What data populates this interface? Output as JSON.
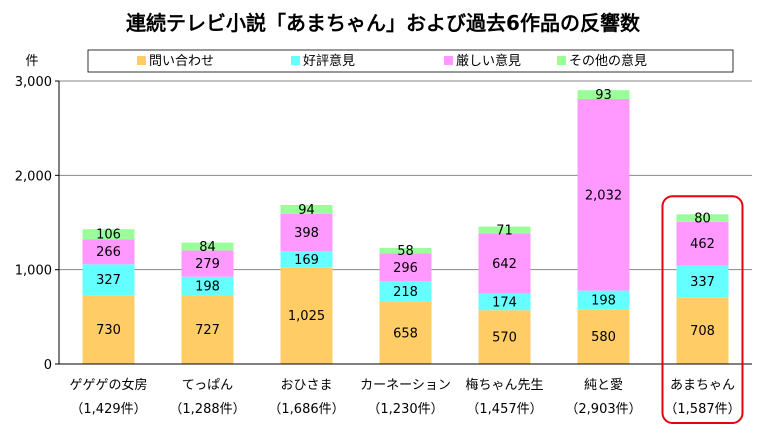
{
  "chart_data": {
    "type": "bar",
    "stacked": true,
    "title": "連続テレビ小説「あまちゃん」および過去6作品の反響数",
    "ylabel": "件",
    "ylim": [
      0,
      3000
    ],
    "yticks": [
      0,
      1000,
      2000,
      3000
    ],
    "grid": true,
    "legend_position": "top",
    "categories": [
      "ゲゲゲの女房",
      "てっぱん",
      "おひさま",
      "カーネーション",
      "梅ちゃん先生",
      "純と愛",
      "あまちゃん"
    ],
    "category_totals": [
      "（1,429件）",
      "（1,288件）",
      "（1,686件）",
      "（1,230件）",
      "（1,457件）",
      "（2,903件）",
      "（1,587件）"
    ],
    "series": [
      {
        "name": "問い合わせ",
        "color": "#FFCC66",
        "values": [
          730,
          727,
          1025,
          658,
          570,
          580,
          708
        ]
      },
      {
        "name": "好評意見",
        "color": "#66FFFF",
        "values": [
          327,
          198,
          169,
          218,
          174,
          198,
          337
        ]
      },
      {
        "name": "厳しい意見",
        "color": "#FF99FF",
        "values": [
          266,
          279,
          398,
          296,
          642,
          2032,
          462
        ]
      },
      {
        "name": "その他の意見",
        "color": "#99FF99",
        "values": [
          106,
          84,
          94,
          58,
          71,
          93,
          80
        ]
      }
    ],
    "highlight": {
      "index": 6,
      "color": "#E60012"
    }
  }
}
